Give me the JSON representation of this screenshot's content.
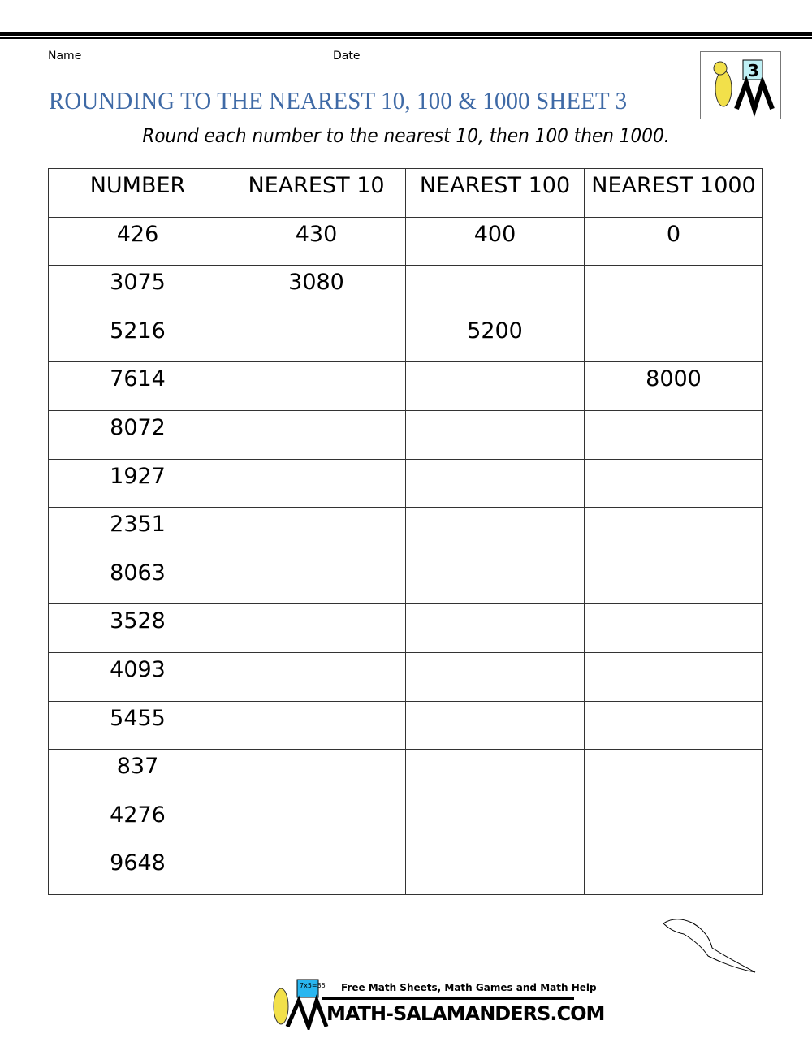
{
  "header": {
    "name_label": "Name",
    "date_label": "Date",
    "title": "ROUNDING TO THE NEAREST 10, 100 & 1000 SHEET 3",
    "subtitle": "Round each number to the nearest 10, then 100 then 1000.",
    "logo_number": "3"
  },
  "table": {
    "headers": [
      "NUMBER",
      "NEAREST 10",
      "NEAREST 100",
      "NEAREST 1000"
    ],
    "rows": [
      [
        "426",
        "430",
        "400",
        "0"
      ],
      [
        "3075",
        "3080",
        "",
        ""
      ],
      [
        "5216",
        "",
        "5200",
        ""
      ],
      [
        "7614",
        "",
        "",
        "8000"
      ],
      [
        "8072",
        "",
        "",
        ""
      ],
      [
        "1927",
        "",
        "",
        ""
      ],
      [
        "2351",
        "",
        "",
        ""
      ],
      [
        "8063",
        "",
        "",
        ""
      ],
      [
        "3528",
        "",
        "",
        ""
      ],
      [
        "4093",
        "",
        "",
        ""
      ],
      [
        "5455",
        "",
        "",
        ""
      ],
      [
        "837",
        "",
        "",
        ""
      ],
      [
        "4276",
        "",
        "",
        ""
      ],
      [
        "9648",
        "",
        "",
        ""
      ]
    ]
  },
  "footer": {
    "tagline": "Free Math Sheets, Math Games and Math Help",
    "brand": "MATH-SALAMANDERS.COM",
    "logo_sum": "7x5=35"
  }
}
